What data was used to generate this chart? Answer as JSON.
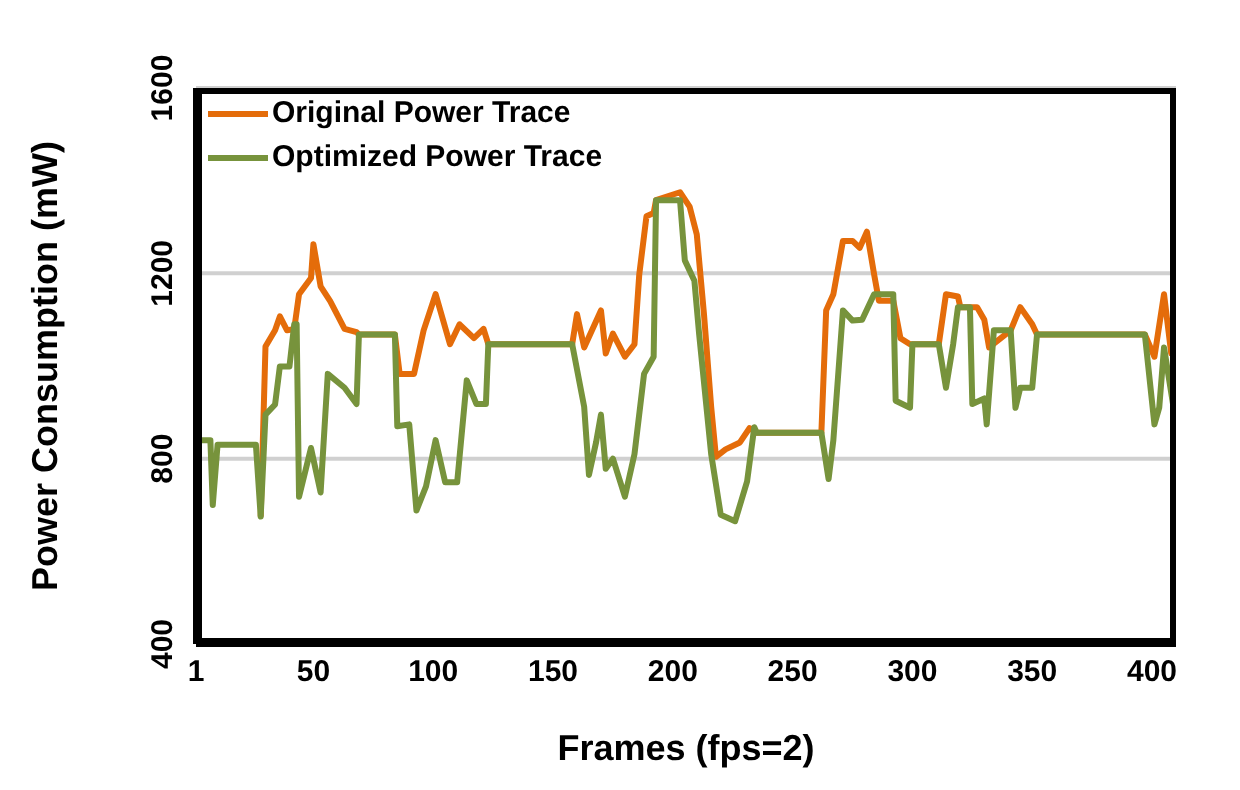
{
  "chart_data": {
    "type": "line",
    "xlabel": "Frames (fps=2)",
    "ylabel": "Power Consumption (mW)",
    "xlim": [
      1,
      410
    ],
    "xticks": [
      1,
      50,
      100,
      150,
      200,
      250,
      300,
      350,
      400
    ],
    "ylim": [
      400,
      1600
    ],
    "yticks": [
      400,
      800,
      1200,
      1600
    ],
    "grid": "y",
    "legend": "top left",
    "marker": "none",
    "line_style": "solid",
    "series": [
      {
        "name": "Original Power Trace",
        "color": "#e46c0a",
        "x": [
          28,
          30,
          34,
          36,
          39,
          42,
          44,
          49,
          50,
          53,
          57,
          63,
          68,
          69,
          84,
          86,
          92,
          96,
          101,
          107,
          111,
          117,
          121,
          123,
          158,
          160,
          163,
          170,
          172,
          175,
          180,
          184,
          186,
          189,
          192,
          193,
          203,
          207,
          210,
          213,
          216,
          218,
          222,
          228,
          232,
          235,
          262,
          264,
          267,
          271,
          275,
          278,
          281,
          284,
          286,
          292,
          295,
          299,
          311,
          314,
          319,
          320,
          327,
          330,
          332,
          341,
          345,
          350,
          352,
          397,
          401,
          405,
          408,
          409
        ],
        "values": [
          675,
          1042,
          1077,
          1107,
          1077,
          1080,
          1155,
          1190,
          1263,
          1172,
          1140,
          1080,
          1073,
          1068,
          1068,
          983,
          983,
          1077,
          1155,
          1047,
          1090,
          1060,
          1080,
          1047,
          1047,
          1112,
          1040,
          1120,
          1027,
          1070,
          1020,
          1047,
          1198,
          1323,
          1330,
          1358,
          1375,
          1344,
          1284,
          1112,
          912,
          804,
          820,
          835,
          866,
          856,
          856,
          1120,
          1155,
          1270,
          1270,
          1255,
          1290,
          1198,
          1141,
          1141,
          1060,
          1047,
          1047,
          1155,
          1150,
          1127,
          1127,
          1100,
          1040,
          1077,
          1127,
          1090,
          1068,
          1068,
          1020,
          1155,
          1027,
          1040
        ]
      },
      {
        "name": "Optimized Power Trace",
        "color": "#77933c",
        "x": [
          1,
          7,
          8,
          10,
          26,
          28,
          30,
          34,
          36,
          40,
          42,
          43,
          44,
          49,
          53,
          56,
          63,
          68,
          69,
          84,
          85,
          90,
          93,
          97,
          101,
          105,
          110,
          114,
          118,
          122,
          123,
          158,
          163,
          165,
          168,
          170,
          172,
          175,
          180,
          184,
          188,
          192,
          193,
          203,
          205,
          209,
          211,
          216,
          220,
          226,
          231,
          234,
          235,
          262,
          265,
          267,
          271,
          275,
          279,
          284,
          292,
          293,
          299,
          300,
          311,
          314,
          317,
          319,
          324,
          325,
          330,
          331,
          334,
          341,
          343,
          345,
          350,
          352,
          397,
          401,
          403,
          405,
          409
        ],
        "values": [
          840,
          840,
          700,
          830,
          830,
          675,
          895,
          917,
          999,
          999,
          1090,
          1090,
          718,
          823,
          727,
          983,
          953,
          918,
          1068,
          1068,
          870,
          874,
          688,
          740,
          840,
          749,
          749,
          969,
          918,
          918,
          1047,
          1047,
          912,
          765,
          836,
          895,
          778,
          800,
          718,
          810,
          983,
          1020,
          1358,
          1358,
          1228,
          1184,
          1068,
          810,
          679,
          665,
          751,
          868,
          856,
          856,
          756,
          840,
          1120,
          1098,
          1100,
          1155,
          1155,
          925,
          910,
          1047,
          1047,
          953,
          1047,
          1127,
          1127,
          918,
          930,
          874,
          1077,
          1077,
          910,
          953,
          953,
          1068,
          1068,
          874,
          910,
          1040,
          910
        ]
      }
    ]
  }
}
